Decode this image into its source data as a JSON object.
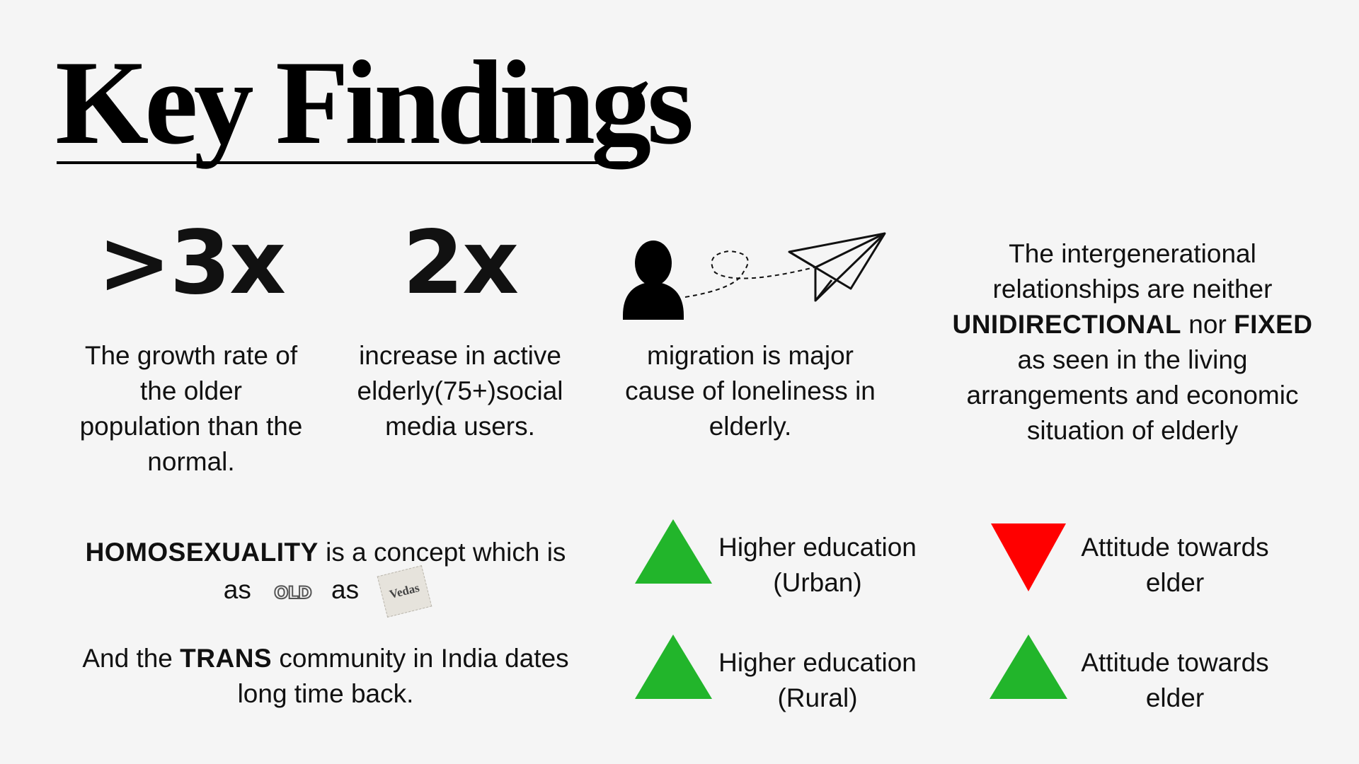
{
  "title": "Key Findings",
  "stats": {
    "growth": {
      "figure": ">3x",
      "description": "The growth rate of the older population than the normal."
    },
    "social": {
      "figure": "2x",
      "description": "increase in active elderly(75+)social media users."
    },
    "migration": {
      "description": "migration is major cause of loneliness in elderly."
    }
  },
  "relationships": {
    "line1": "The intergenerational relationships are neither",
    "term1": "UNIDIRECTIONAL",
    "joiner": "nor",
    "term2": "FIXED",
    "line2": "as seen in the living arrangements and economic situation of elderly"
  },
  "homosexuality": {
    "term": "HOMOSEXUALITY",
    "text": "is a concept which is",
    "as1": "as",
    "old_word": "OLD",
    "as2": "as",
    "vedas_word": "Vedas"
  },
  "trans": {
    "prefix": "And the",
    "term": "TRANS",
    "text": "community in India dates long time back."
  },
  "indicators": [
    {
      "label_line1": "Higher education",
      "label_line2": "(Urban)",
      "direction": "up",
      "color": "#22b52b"
    },
    {
      "label_line1": "Attitude towards",
      "label_line2": "elder",
      "direction": "down",
      "color": "#ff0000"
    },
    {
      "label_line1": "Higher education",
      "label_line2": "(Rural)",
      "direction": "up",
      "color": "#22b52b"
    },
    {
      "label_line1": "Attitude towards",
      "label_line2": "elder",
      "direction": "up",
      "color": "#22b52b"
    }
  ],
  "icons": {
    "person": "person-icon",
    "plane": "paper-plane-icon"
  }
}
